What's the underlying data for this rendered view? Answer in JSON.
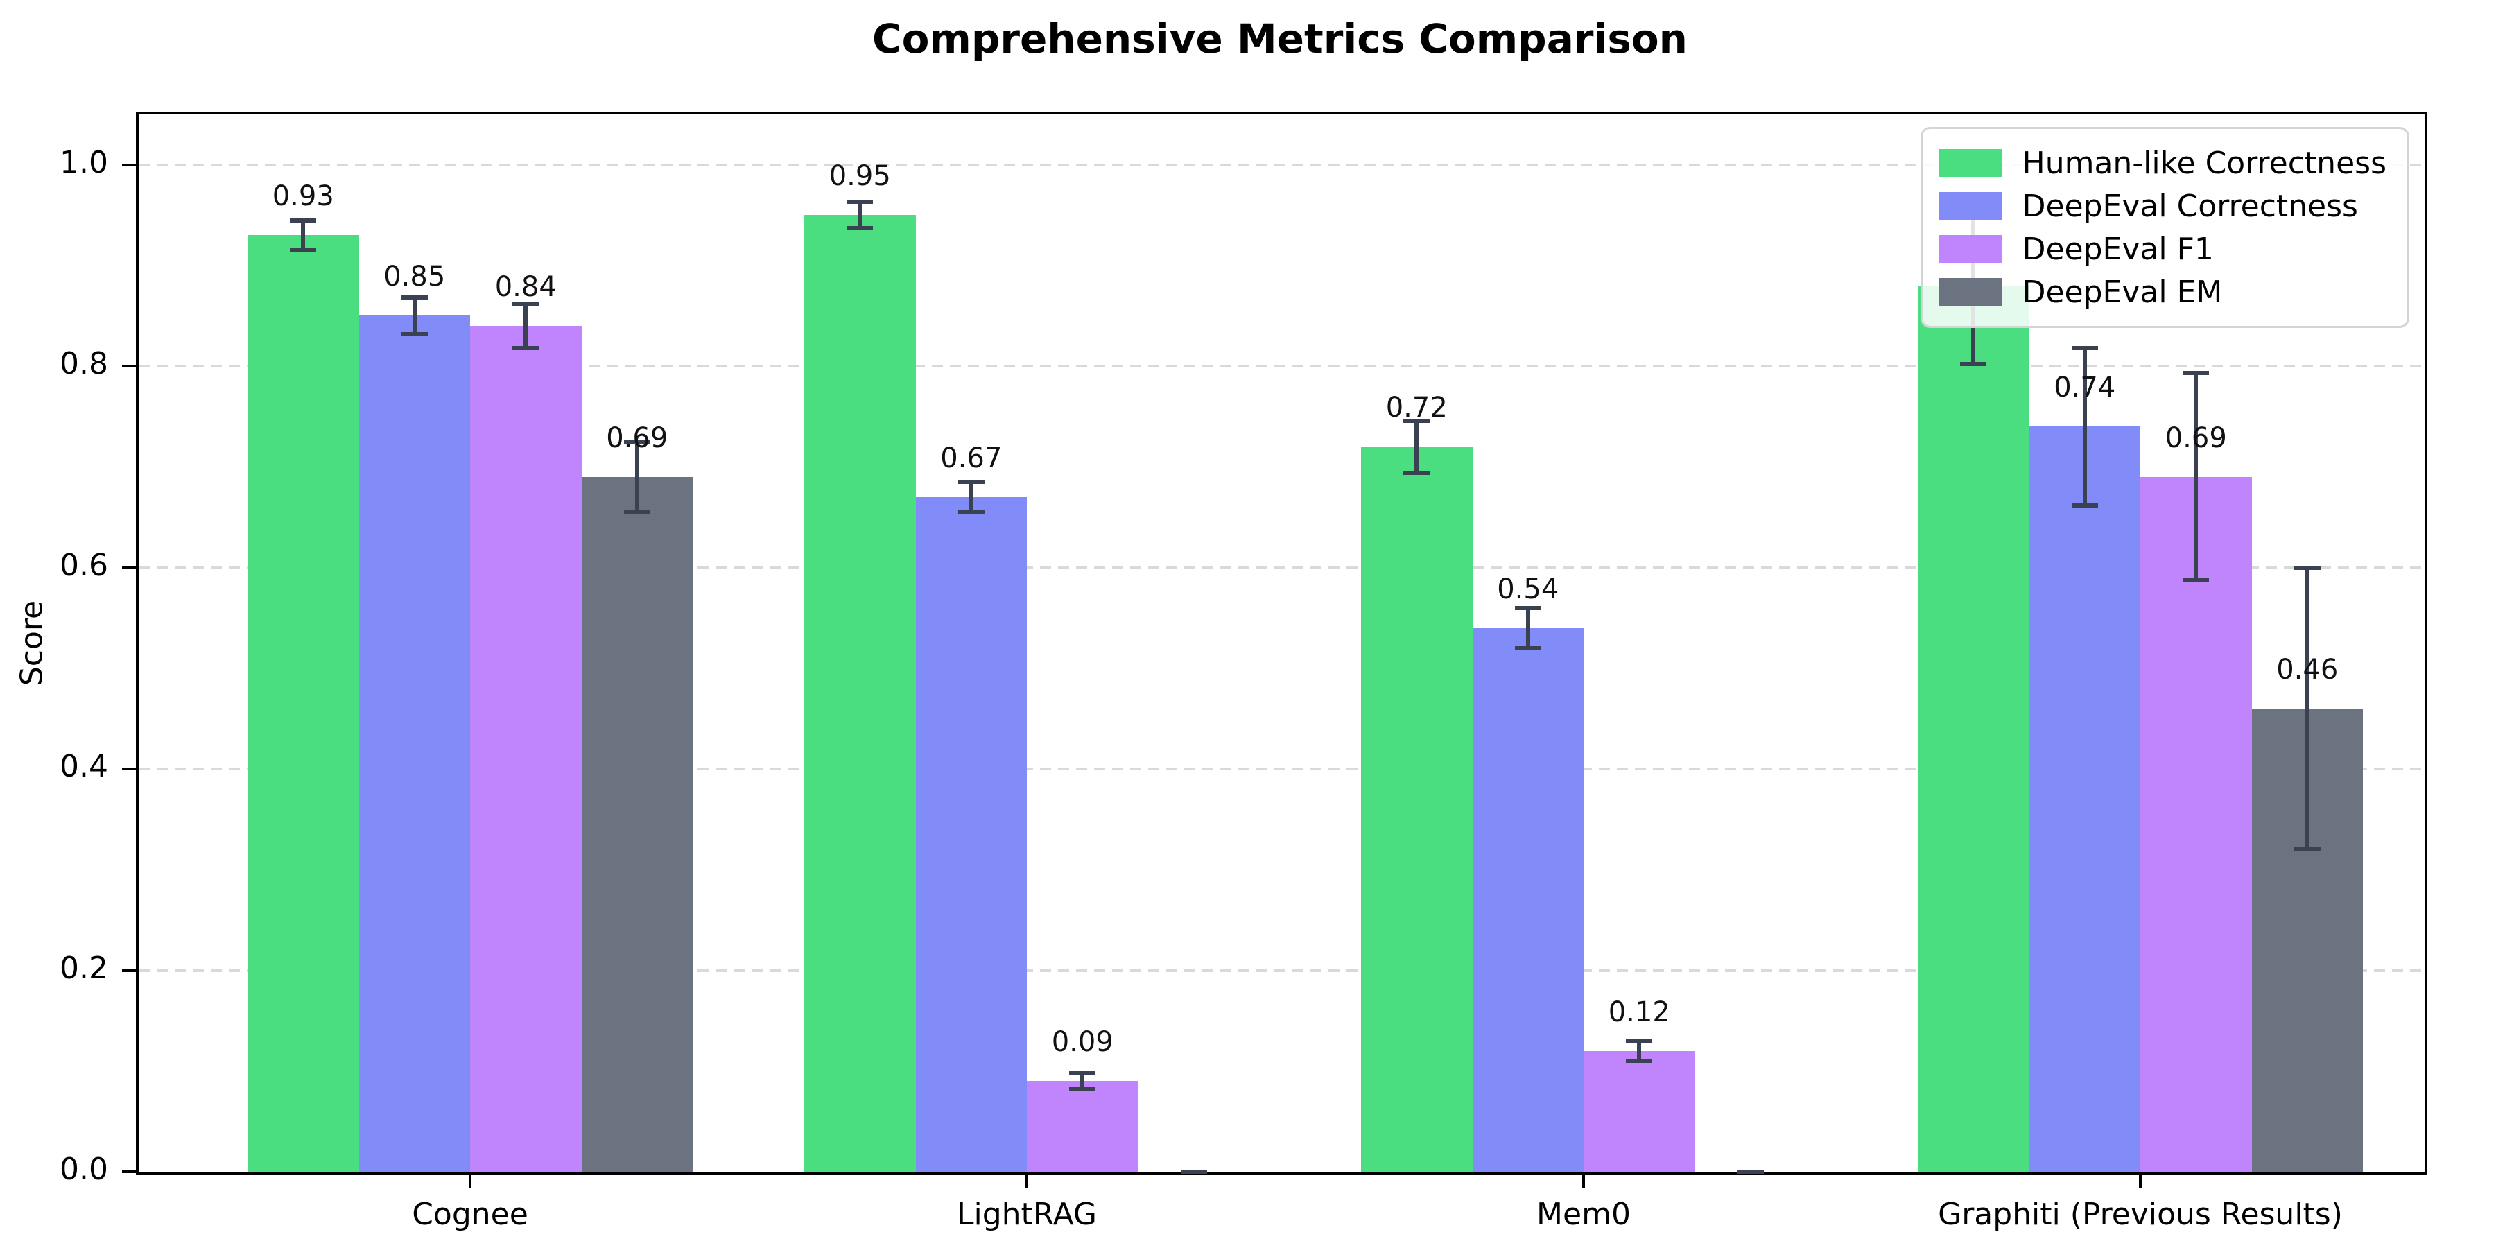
{
  "chart_data": {
    "type": "bar",
    "title": "Comprehensive Metrics Comparison",
    "xlabel": "",
    "ylabel": "Score",
    "categories": [
      "Cognee",
      "LightRAG",
      "Mem0",
      "Graphiti (Previous Results)"
    ],
    "series": [
      {
        "name": "Human-like Correctness",
        "color": "#4ade80",
        "values": [
          0.93,
          0.95,
          0.72,
          0.88
        ],
        "errors": [
          0.015,
          0.013,
          0.026,
          0.078
        ],
        "value_labels": [
          "0.93",
          "0.95",
          "0.72",
          "0.88"
        ]
      },
      {
        "name": "DeepEval Correctness",
        "color": "#818cf8",
        "values": [
          0.85,
          0.67,
          0.54,
          0.74
        ],
        "errors": [
          0.018,
          0.015,
          0.02,
          0.078
        ],
        "value_labels": [
          "0.85",
          "0.67",
          "0.54",
          "0.74"
        ]
      },
      {
        "name": "DeepEval F1",
        "color": "#c084fc",
        "values": [
          0.84,
          0.09,
          0.12,
          0.69
        ],
        "errors": [
          0.022,
          0.008,
          0.01,
          0.103
        ],
        "value_labels": [
          "0.84",
          "0.09",
          "0.12",
          "0.69"
        ]
      },
      {
        "name": "DeepEval EM",
        "color": "#6b7280",
        "values": [
          0.69,
          0.0,
          0.0,
          0.46
        ],
        "errors": [
          0.035,
          0.0,
          0.0,
          0.14
        ],
        "value_labels": [
          "0.69",
          "",
          "",
          "0.46"
        ]
      }
    ],
    "yticks": [
      0.0,
      0.2,
      0.4,
      0.6,
      0.8,
      1.0
    ],
    "ytick_labels": [
      "0.0",
      "0.2",
      "0.4",
      "0.6",
      "0.8",
      "1.0"
    ],
    "ylim": [
      0,
      1.05
    ],
    "grid": "horizontal-dashed",
    "legend_position": "upper right",
    "error_bar_color": "#3a4252"
  }
}
